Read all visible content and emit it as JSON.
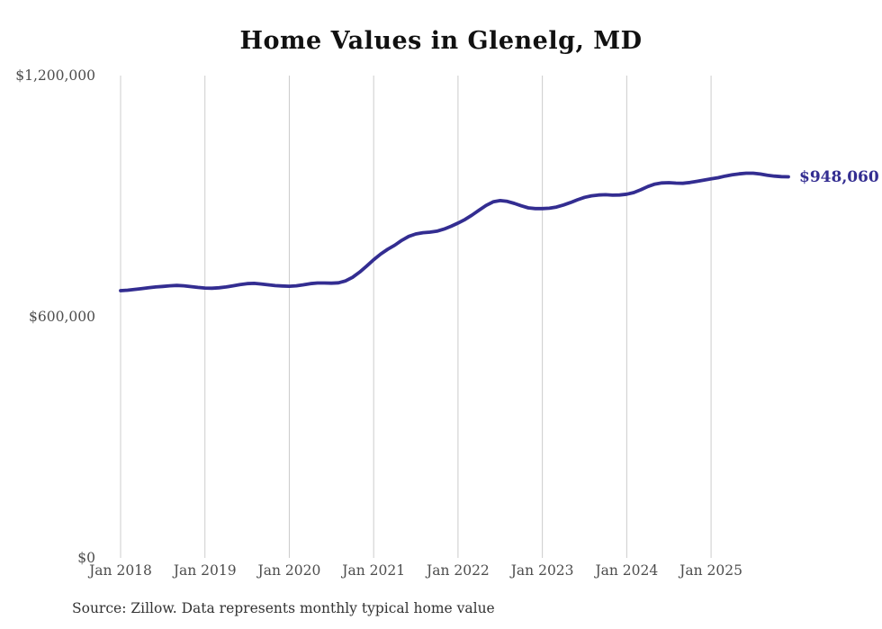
{
  "header": {
    "title": "Home Values in Glenelg, MD"
  },
  "footer": {
    "source": "Source: Zillow. Data represents monthly typical home value"
  },
  "colors": {
    "line": "#332d91",
    "value_label": "#332d91",
    "grid": "#cccccc",
    "title": "#111111",
    "axis_label": "#4d4d4d",
    "background": "#ffffff"
  },
  "chart_data": {
    "type": "line",
    "title": "Home Values in Glenelg, MD",
    "xlabel": "",
    "ylabel": "",
    "ylim": [
      0,
      1200000
    ],
    "grid": "vertical-only",
    "legend": "none",
    "end_label": "$948,060",
    "y_ticks": [
      {
        "label": "$1,200,000",
        "value": 1200000
      },
      {
        "label": "$600,000",
        "value": 600000
      },
      {
        "label": "$0",
        "value": 0
      }
    ],
    "x_tick_labels": [
      "Jan 2018",
      "Jan 2019",
      "Jan 2020",
      "Jan 2021",
      "Jan 2022",
      "Jan 2023",
      "Jan 2024",
      "Jan 2025"
    ],
    "x": [
      "2018-01",
      "2018-02",
      "2018-03",
      "2018-04",
      "2018-05",
      "2018-06",
      "2018-07",
      "2018-08",
      "2018-09",
      "2018-10",
      "2018-11",
      "2018-12",
      "2019-01",
      "2019-02",
      "2019-03",
      "2019-04",
      "2019-05",
      "2019-06",
      "2019-07",
      "2019-08",
      "2019-09",
      "2019-10",
      "2019-11",
      "2019-12",
      "2020-01",
      "2020-02",
      "2020-03",
      "2020-04",
      "2020-05",
      "2020-06",
      "2020-07",
      "2020-08",
      "2020-09",
      "2020-10",
      "2020-11",
      "2020-12",
      "2021-01",
      "2021-02",
      "2021-03",
      "2021-04",
      "2021-05",
      "2021-06",
      "2021-07",
      "2021-08",
      "2021-09",
      "2021-10",
      "2021-11",
      "2021-12",
      "2022-01",
      "2022-02",
      "2022-03",
      "2022-04",
      "2022-05",
      "2022-06",
      "2022-07",
      "2022-08",
      "2022-09",
      "2022-10",
      "2022-11",
      "2022-12",
      "2023-01",
      "2023-02",
      "2023-03",
      "2023-04",
      "2023-05",
      "2023-06",
      "2023-07",
      "2023-08",
      "2023-09",
      "2023-10",
      "2023-11",
      "2023-12",
      "2024-01",
      "2024-02",
      "2024-03",
      "2024-04",
      "2024-05",
      "2024-06",
      "2024-07",
      "2024-08",
      "2024-09",
      "2024-10",
      "2024-11",
      "2024-12",
      "2025-01",
      "2025-02",
      "2025-03",
      "2025-04",
      "2025-05",
      "2025-06",
      "2025-07",
      "2025-08",
      "2025-09",
      "2025-10",
      "2025-11",
      "2025-12"
    ],
    "series": [
      {
        "name": "Typical home value",
        "values": [
          665000,
          666000,
          668000,
          670000,
          672000,
          674000,
          675500,
          677000,
          678000,
          677000,
          675000,
          673000,
          671500,
          671000,
          672000,
          674000,
          677000,
          680000,
          682500,
          683000,
          681500,
          679500,
          677500,
          676500,
          676000,
          677000,
          679500,
          682500,
          684000,
          684000,
          683500,
          684500,
          689000,
          698000,
          711000,
          726000,
          742000,
          756000,
          768000,
          778000,
          790000,
          800000,
          806000,
          809000,
          810500,
          813000,
          818000,
          825000,
          833000,
          842000,
          853000,
          865000,
          877000,
          886000,
          889000,
          887000,
          882000,
          876000,
          871000,
          869000,
          869000,
          870000,
          873000,
          878000,
          884000,
          891000,
          897000,
          901000,
          903000,
          903500,
          902500,
          903000,
          905000,
          909000,
          916000,
          924000,
          930000,
          933000,
          933500,
          932500,
          932000,
          934000,
          937000,
          940000,
          943000,
          946000,
          950000,
          953000,
          955500,
          957000,
          957000,
          955000,
          952000,
          950000,
          948500,
          948060
        ]
      }
    ],
    "last_value": 948060
  }
}
